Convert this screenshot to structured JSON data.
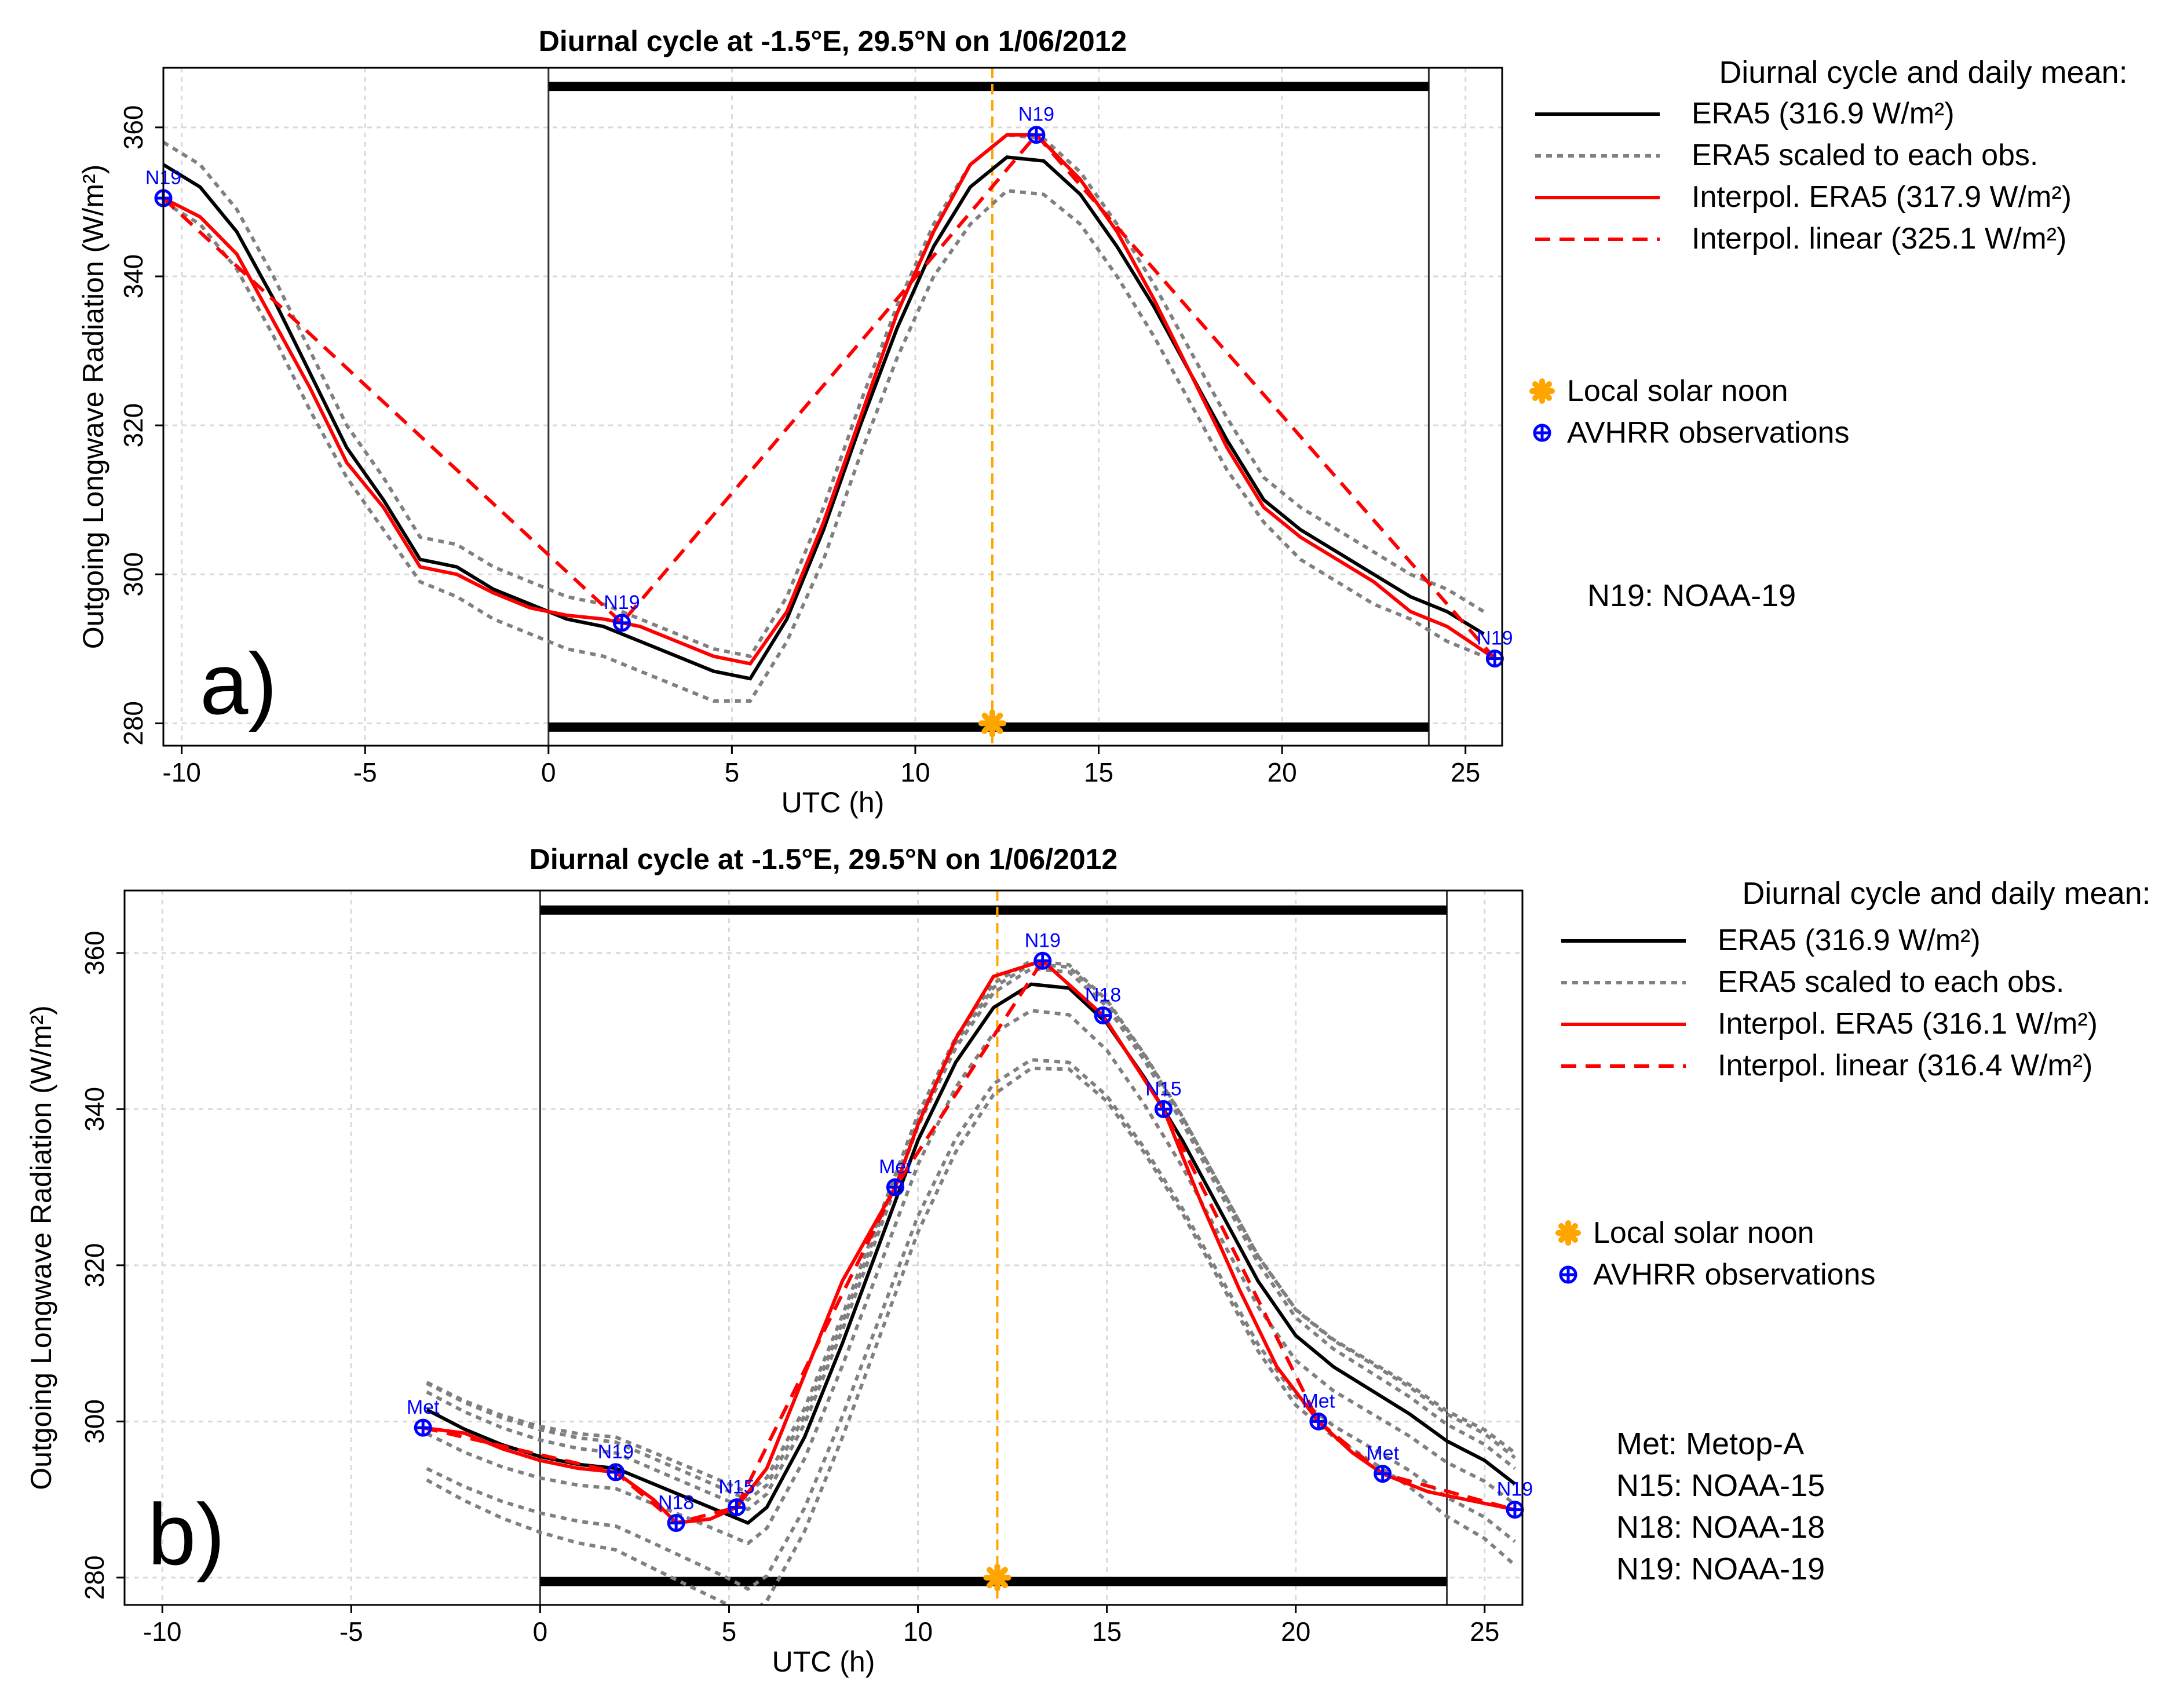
{
  "chart_data": [
    {
      "type": "line",
      "panel_label": "a)",
      "title": "Diurnal cycle at -1.5°E, 29.5°N on 1/06/2012",
      "xlabel": "UTC (h)",
      "ylabel": "Outgoing Longwave Radiation (W/m²)",
      "xlim": [
        -10.5,
        26
      ],
      "ylim": [
        277,
        368
      ],
      "xticks": [
        -10,
        -5,
        0,
        5,
        10,
        15,
        20,
        25
      ],
      "yticks": [
        280,
        300,
        320,
        340,
        360
      ],
      "day_start": 0,
      "day_end": 24,
      "bar_top": 365.5,
      "bar_bottom": 279.5,
      "solar_noon_x": 12.1,
      "solar_noon_y": 280,
      "colors": {
        "era5": "#000000",
        "scaled": "#808080",
        "interp": "#ff0000",
        "noon": "#ffa500",
        "obs": "#0000ff"
      },
      "series": [
        {
          "name": "ERA5",
          "style": "era5",
          "x": [
            -10.5,
            -9.5,
            -8.5,
            -7.5,
            -6.5,
            -5.5,
            -4.5,
            -3.5,
            -2.5,
            -1.5,
            -0.5,
            0.5,
            1.5,
            2.5,
            3.5,
            4.5,
            5.5,
            6.5,
            7.5,
            8.5,
            9.5,
            10.5,
            11.5,
            12.5,
            13.5,
            14.5,
            15.5,
            16.5,
            17.5,
            18.5,
            19.5,
            20.5,
            21.5,
            22.5,
            23.5,
            24.5,
            25.5
          ],
          "y": [
            355,
            352,
            346,
            337,
            327,
            317,
            310,
            302,
            301,
            298,
            296,
            294,
            293,
            291,
            289,
            287,
            286,
            294,
            306,
            320,
            333,
            344,
            352,
            356,
            355.5,
            351,
            344,
            336,
            327,
            318,
            310,
            306,
            303,
            300,
            297,
            295,
            292
          ]
        },
        {
          "name": "ERA5 scaled (upper)",
          "style": "scaled",
          "x": [
            -10.5,
            -9.5,
            -8.5,
            -7.5,
            -6.5,
            -5.5,
            -4.5,
            -3.5,
            -2.5,
            -1.5,
            -0.5,
            0.5,
            1.5,
            2.5,
            3.5,
            4.5,
            5.5,
            6.5,
            7.5,
            8.5,
            9.5,
            10.5,
            11.5,
            12.5,
            13.5,
            14.5,
            15.5,
            16.5,
            17.5,
            18.5,
            19.5,
            20.5,
            21.5,
            22.5,
            23.5,
            24.5,
            25.5
          ],
          "y": [
            358,
            355,
            349,
            340,
            330,
            320,
            313,
            305,
            304,
            301,
            299,
            297,
            296,
            294,
            292,
            290,
            289,
            297,
            309,
            323,
            336,
            347,
            355,
            359,
            358.5,
            354,
            347,
            339,
            330,
            321,
            313,
            309,
            306,
            303,
            300,
            298,
            295
          ]
        },
        {
          "name": "ERA5 scaled (lower)",
          "style": "scaled",
          "x": [
            -10.5,
            -9.5,
            -8.5,
            -7.5,
            -6.5,
            -5.5,
            -4.5,
            -3.5,
            -2.5,
            -1.5,
            -0.5,
            0.5,
            1.5,
            2.5,
            3.5,
            4.5,
            5.5,
            6.5,
            7.5,
            8.5,
            9.5,
            10.5,
            11.5,
            12.5,
            13.5,
            14.5,
            15.5,
            16.5,
            17.5,
            18.5,
            19.5,
            20.5,
            21.5,
            22.5,
            23.5,
            24.5,
            25.5
          ],
          "y": [
            350,
            347,
            341,
            332,
            322,
            313,
            306,
            299,
            297,
            294,
            292,
            290,
            289,
            287,
            285,
            283,
            283,
            291,
            302,
            316,
            329,
            340,
            347,
            351.5,
            351,
            347,
            340,
            332,
            323,
            314,
            307,
            302,
            299,
            296,
            294,
            291,
            289
          ]
        },
        {
          "name": "Interpol. ERA5",
          "style": "interp",
          "x": [
            -10.5,
            -9.5,
            -8.5,
            -7.5,
            -6.5,
            -5.5,
            -4.5,
            -3.5,
            -2.5,
            -1.5,
            -0.5,
            0.5,
            1.5,
            2.0,
            2.5,
            3.5,
            4.5,
            5.5,
            6.5,
            7.5,
            8.5,
            9.5,
            10.5,
            11.5,
            12.5,
            13.3,
            14.5,
            15.5,
            16.5,
            17.5,
            18.5,
            19.5,
            20.5,
            21.5,
            22.5,
            23.5,
            24.5,
            25.8
          ],
          "y": [
            350.5,
            348,
            343,
            334,
            325,
            315,
            309,
            301,
            300,
            297.5,
            295.5,
            294.5,
            294,
            293.5,
            293,
            291,
            289,
            288,
            295,
            307,
            321,
            335,
            346,
            355,
            359,
            359,
            353,
            346,
            337,
            327,
            317,
            309,
            305,
            302,
            299,
            295,
            293,
            288.7
          ]
        },
        {
          "name": "Interpol. linear",
          "style": "linear",
          "x": [
            -10.5,
            2.0,
            13.3,
            25.8
          ],
          "y": [
            350.5,
            293.5,
            359,
            288.7
          ]
        }
      ],
      "observations": [
        {
          "label": "N19",
          "x": -10.5,
          "y": 350.5
        },
        {
          "label": "N19",
          "x": 2.0,
          "y": 293.5
        },
        {
          "label": "N19",
          "x": 13.3,
          "y": 359
        },
        {
          "label": "N19",
          "x": 25.8,
          "y": 288.7
        }
      ],
      "legend": {
        "heading": "Diurnal cycle and daily mean:",
        "entries": [
          {
            "label": "ERA5 (316.9 W/m²)",
            "style": "era5"
          },
          {
            "label": "ERA5 scaled to each obs.",
            "style": "scaled"
          },
          {
            "label": "Interpol. ERA5 (317.9 W/m²)",
            "style": "interp"
          },
          {
            "label": "Interpol. linear (325.1 W/m²)",
            "style": "linear"
          }
        ],
        "symbols": [
          {
            "label": "Local solar noon",
            "style": "noon"
          },
          {
            "label": "AVHRR observations",
            "style": "obs"
          }
        ],
        "satellites": [
          "N19: NOAA-19"
        ],
        "placement": "right"
      }
    },
    {
      "type": "line",
      "panel_label": "b)",
      "title": "Diurnal cycle at -1.5°E, 29.5°N on 1/06/2012",
      "xlabel": "UTC (h)",
      "ylabel": "Outgoing Longwave Radiation (W/m²)",
      "xlim": [
        -11,
        26
      ],
      "ylim": [
        276.5,
        368
      ],
      "xticks": [
        -10,
        -5,
        0,
        5,
        10,
        15,
        20,
        25
      ],
      "yticks": [
        280,
        300,
        320,
        340,
        360
      ],
      "day_start": 0,
      "day_end": 24,
      "bar_top": 365.5,
      "bar_bottom": 279.5,
      "solar_noon_x": 12.1,
      "solar_noon_y": 280,
      "colors": {
        "era5": "#000000",
        "scaled": "#808080",
        "interp": "#ff0000",
        "noon": "#ffa500",
        "obs": "#0000ff"
      },
      "base_x": [
        -3,
        -2,
        -1,
        0,
        1,
        2,
        3,
        4,
        5,
        5.5,
        6,
        7,
        8,
        9,
        10,
        11,
        12,
        13,
        14,
        15,
        16,
        17,
        18,
        19,
        20,
        21,
        22,
        23,
        24,
        25,
        25.8
      ],
      "base_y": [
        301.5,
        299,
        297,
        295.5,
        294.5,
        294,
        292,
        290,
        288,
        287,
        289,
        298,
        310,
        323,
        336,
        346,
        353,
        356,
        355.5,
        351,
        344,
        336,
        327,
        318,
        311,
        307,
        304,
        301,
        297.5,
        295,
        292
      ],
      "scaled_offsets": [
        3.5,
        3.0,
        2.0,
        -3.0,
        -8.5,
        -10.5
      ],
      "series": [
        {
          "name": "Interpol. ERA5",
          "style": "interp",
          "x": [
            -3.1,
            -2,
            -1,
            0,
            1,
            2.0,
            3,
            3.6,
            4.5,
            5.2,
            6,
            7,
            8,
            9.4,
            10,
            11,
            12,
            13.3,
            14.9,
            16.5,
            17.5,
            18.5,
            19.5,
            20.6,
            21.5,
            22.3,
            23.5,
            24.5,
            25.8
          ],
          "y": [
            299.2,
            298.5,
            296.5,
            295,
            294,
            293.5,
            290,
            287,
            287.5,
            289,
            294,
            306,
            318,
            330,
            338,
            349,
            357,
            359,
            352,
            340,
            328,
            317,
            307,
            300,
            296,
            293.3,
            291,
            290,
            288.7
          ]
        },
        {
          "name": "Interpol. linear",
          "style": "linear",
          "x": [
            -3.1,
            2.0,
            3.6,
            5.2,
            9.4,
            13.3,
            14.9,
            16.5,
            20.6,
            22.3,
            25.8
          ],
          "y": [
            299.2,
            293.5,
            287,
            289,
            330,
            359,
            352,
            340,
            300,
            293.3,
            288.7
          ]
        }
      ],
      "observations": [
        {
          "label": "Met",
          "x": -3.1,
          "y": 299.2
        },
        {
          "label": "N19",
          "x": 2.0,
          "y": 293.5
        },
        {
          "label": "N18",
          "x": 3.6,
          "y": 287
        },
        {
          "label": "N15",
          "x": 5.2,
          "y": 289
        },
        {
          "label": "Met",
          "x": 9.4,
          "y": 330
        },
        {
          "label": "N19",
          "x": 13.3,
          "y": 359
        },
        {
          "label": "N18",
          "x": 14.9,
          "y": 352
        },
        {
          "label": "N15",
          "x": 16.5,
          "y": 340
        },
        {
          "label": "Met",
          "x": 20.6,
          "y": 300
        },
        {
          "label": "Met",
          "x": 22.3,
          "y": 293.3
        },
        {
          "label": "N19",
          "x": 25.8,
          "y": 288.7
        }
      ],
      "legend": {
        "heading": "Diurnal cycle and daily mean:",
        "entries": [
          {
            "label": "ERA5 (316.9 W/m²)",
            "style": "era5"
          },
          {
            "label": "ERA5 scaled to each obs.",
            "style": "scaled"
          },
          {
            "label": "Interpol. ERA5 (316.1 W/m²)",
            "style": "interp"
          },
          {
            "label": "Interpol. linear (316.4 W/m²)",
            "style": "linear"
          }
        ],
        "symbols": [
          {
            "label": "Local solar noon",
            "style": "noon"
          },
          {
            "label": "AVHRR observations",
            "style": "obs"
          }
        ],
        "satellites": [
          "Met: Metop-A",
          "N15: NOAA-15",
          "N18: NOAA-18",
          "N19: NOAA-19"
        ],
        "placement": "right"
      }
    }
  ]
}
